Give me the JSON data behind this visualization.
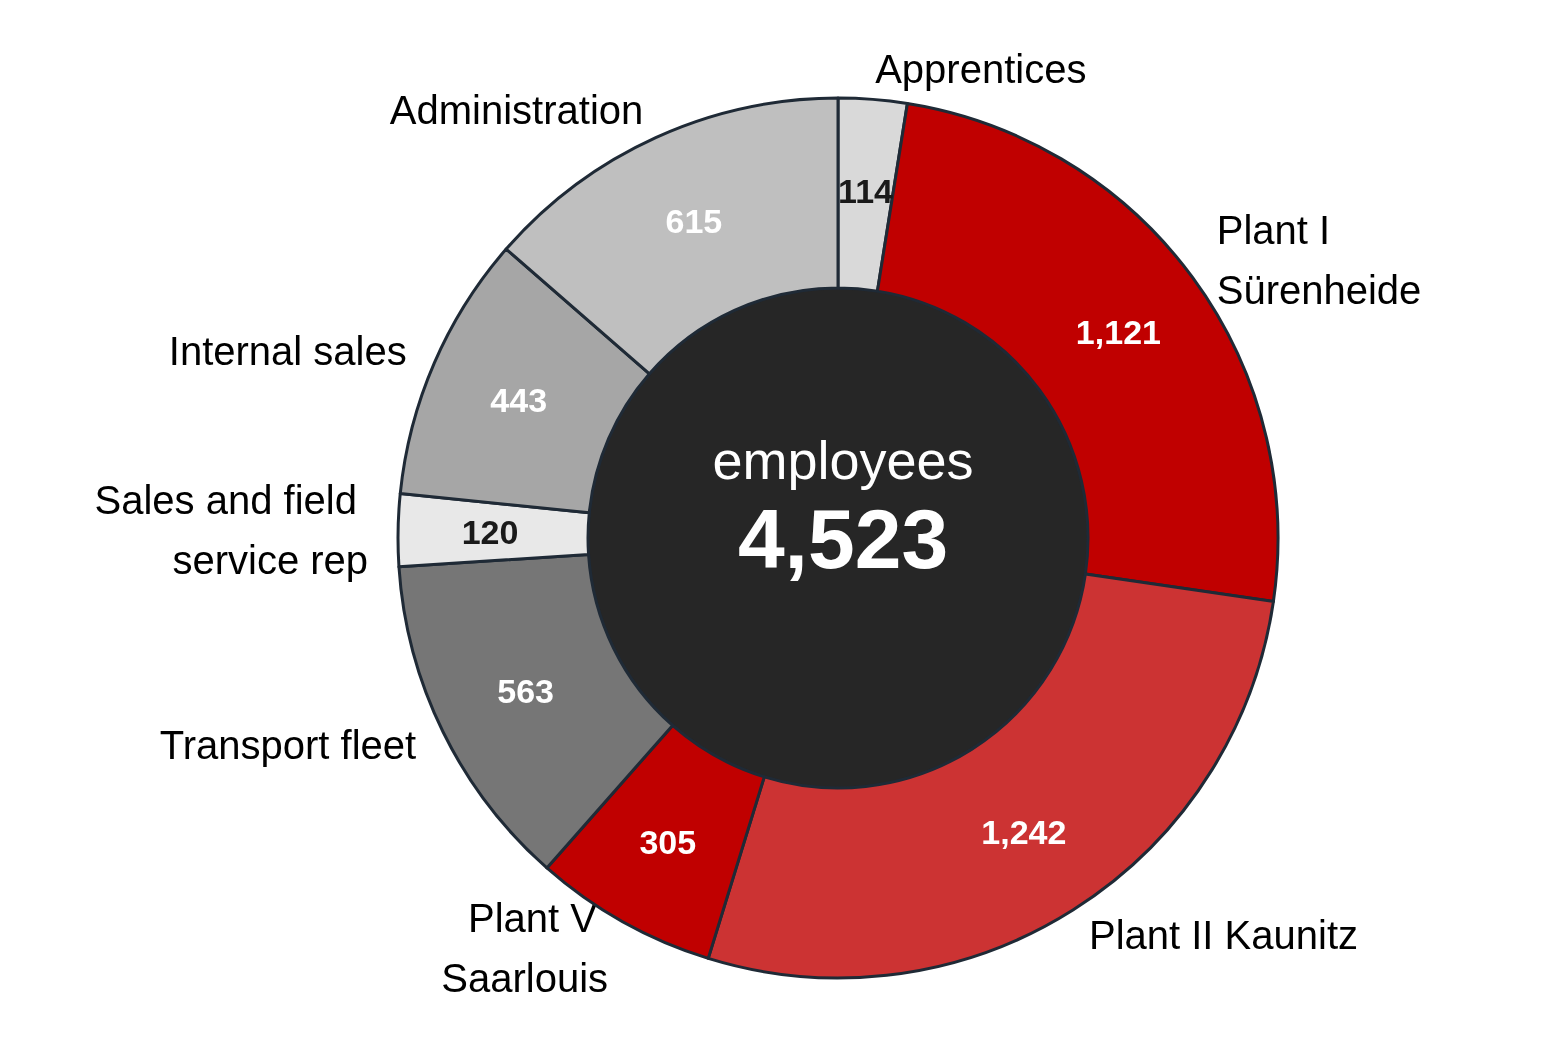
{
  "chart_data": {
    "type": "donut",
    "title": "employees",
    "subtitle": "4,523",
    "categories": [
      "Apprentices",
      "Plant I Sürenheide",
      "Plant II Kaunitz",
      "Plant V Saarlouis",
      "Transport fleet",
      "Sales and field service rep",
      "Internal sales",
      "Administration"
    ],
    "values": [
      114,
      1121,
      1242,
      305,
      563,
      120,
      443,
      615
    ],
    "colors": [
      "#d9d9d9",
      "#c00000",
      "#cc3333",
      "#c00000",
      "#767676",
      "#e8e8e8",
      "#a6a6a6",
      "#bfbfbf"
    ],
    "value_labels": [
      "114",
      "1,121",
      "1,242",
      "305",
      "563",
      "120",
      "443",
      "615"
    ],
    "legend": false
  }
}
